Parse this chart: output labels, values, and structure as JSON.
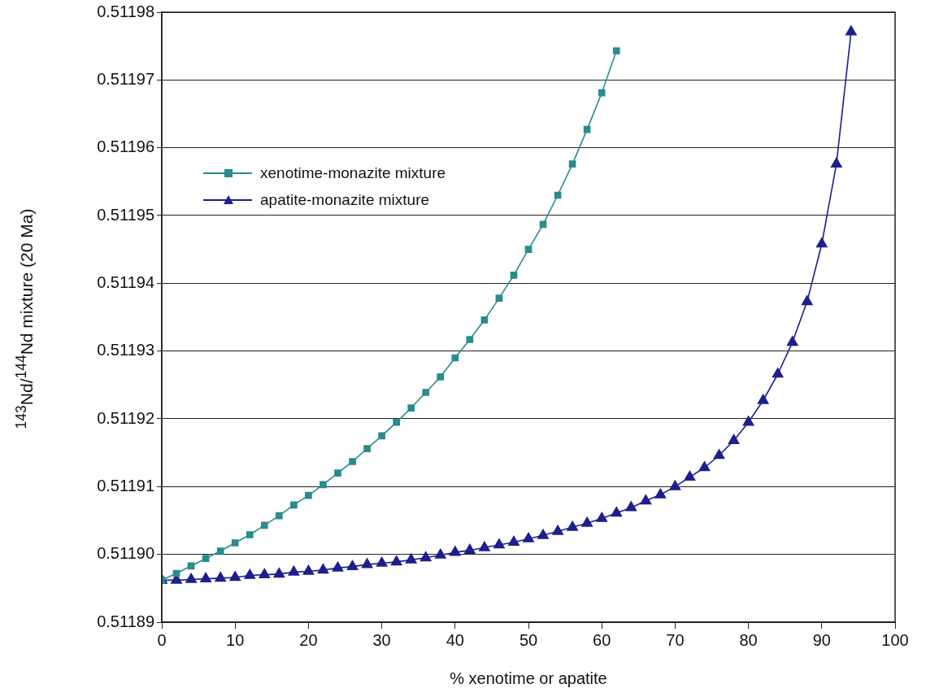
{
  "chart_data": {
    "type": "line",
    "xlabel": "% xenotime or apatite",
    "ylabel": "$^{143}$Nd/$^{144}$Nd mixture (20 Ma)",
    "xlim": [
      0,
      100
    ],
    "xticks": [
      0,
      10,
      20,
      30,
      40,
      50,
      60,
      70,
      80,
      90,
      100
    ],
    "ylim": [
      0.51189,
      0.51198
    ],
    "yticks": [
      0.51189,
      {
        "value": 0.5119,
        "label": "0.51190"
      },
      0.51191,
      0.51192,
      0.51193,
      0.51194,
      0.51195,
      0.51196,
      0.51197,
      0.51198
    ],
    "grid": "y",
    "legend": "top left",
    "line_style": "solid",
    "series": [
      {
        "name": "xenotime-monazite mixture",
        "color": "#2a8c8c",
        "marker": "square",
        "x": [
          0,
          2,
          4,
          6,
          8,
          10,
          12,
          14,
          16,
          18,
          20,
          22,
          24,
          26,
          28,
          30,
          32,
          34,
          36,
          38,
          40,
          42,
          44,
          46,
          48,
          50,
          52,
          54,
          56,
          58,
          60,
          62
        ],
        "values": [
          0.5118962,
          0.5118972,
          0.5118983,
          0.5118994,
          0.5119005,
          0.5119017,
          0.5119029,
          0.5119043,
          0.5119057,
          0.5119073,
          0.5119087,
          0.5119103,
          0.511912,
          0.5119137,
          0.5119156,
          0.5119175,
          0.5119195,
          0.5119216,
          0.5119239,
          0.5119262,
          0.511929,
          0.5119317,
          0.5119346,
          0.5119378,
          0.5119412,
          0.511945,
          0.5119487,
          0.511953,
          0.5119576,
          0.5119627,
          0.5119681,
          0.5119743
        ]
      },
      {
        "name": "apatite-monazite mixture",
        "color": "#1c1f8c",
        "marker": "triangle",
        "x": [
          0,
          2,
          4,
          6,
          8,
          10,
          12,
          14,
          16,
          18,
          20,
          22,
          24,
          26,
          28,
          30,
          32,
          34,
          36,
          38,
          40,
          42,
          44,
          46,
          48,
          50,
          52,
          54,
          56,
          58,
          60,
          62,
          64,
          66,
          68,
          70,
          72,
          74,
          76,
          78,
          80,
          82,
          84,
          86,
          88,
          90,
          92,
          94
        ],
        "values": [
          0.5118962,
          0.5118962,
          0.5118963,
          0.5118964,
          0.5118965,
          0.5118966,
          0.5118969,
          0.511897,
          0.5118971,
          0.5118974,
          0.5118975,
          0.5118977,
          0.511898,
          0.5118982,
          0.5118985,
          0.5118987,
          0.5118989,
          0.5118992,
          0.5118995,
          0.5118999,
          0.5119003,
          0.5119006,
          0.511901,
          0.5119014,
          0.5119018,
          0.5119023,
          0.5119028,
          0.5119034,
          0.511904,
          0.5119046,
          0.5119053,
          0.5119061,
          0.5119069,
          0.5119079,
          0.5119088,
          0.51191,
          0.5119114,
          0.5119128,
          0.5119146,
          0.5119168,
          0.5119195,
          0.5119227,
          0.5119266,
          0.5119313,
          0.5119373,
          0.5119458,
          0.5119576,
          0.5119771
        ]
      }
    ]
  }
}
